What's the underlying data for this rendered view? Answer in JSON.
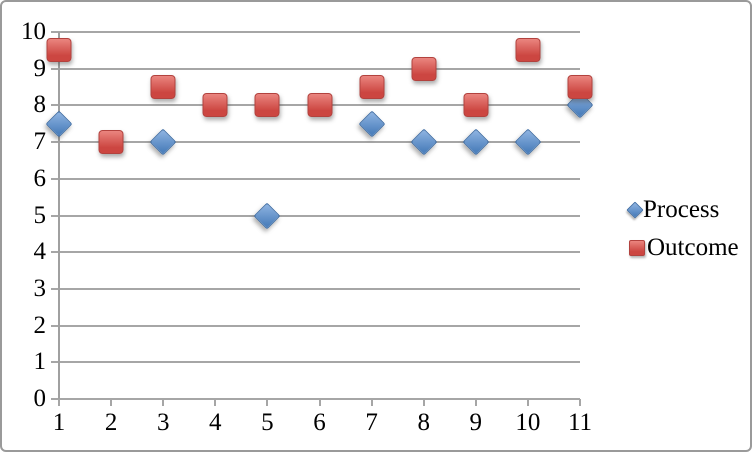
{
  "chart_data": {
    "type": "scatter",
    "x": [
      1,
      2,
      3,
      4,
      5,
      6,
      7,
      8,
      9,
      10,
      11
    ],
    "series": [
      {
        "name": "Process",
        "marker": "diamond",
        "values": [
          7.5,
          null,
          7,
          null,
          5,
          null,
          7.5,
          7,
          7,
          7,
          8
        ],
        "fill_light": "#8fb4e2",
        "fill_dark": "#4e81bd",
        "border_color": "#3e6da5"
      },
      {
        "name": "Outcome",
        "marker": "square",
        "values": [
          9.5,
          7,
          8.5,
          8,
          8,
          8,
          8.5,
          9,
          8,
          9.5,
          8.5
        ],
        "fill_light": "#ea857f",
        "fill_dark": "#cc4641",
        "border_color": "#b2423e"
      }
    ],
    "x_ticks": [
      "1",
      "2",
      "3",
      "4",
      "5",
      "6",
      "7",
      "8",
      "9",
      "10",
      "11"
    ],
    "y_ticks": [
      "0",
      "1",
      "2",
      "3",
      "4",
      "5",
      "6",
      "7",
      "8",
      "9",
      "10"
    ],
    "xlim": [
      1,
      11
    ],
    "ylim": [
      0,
      10
    ],
    "grid": true,
    "legend_position": "right",
    "title": ""
  },
  "colors": {
    "gridline": "#a6a6a6",
    "axis": "#a0a0a0",
    "canvas_border": "#9a9a9a",
    "text": "#000000",
    "background": "#ffffff"
  }
}
